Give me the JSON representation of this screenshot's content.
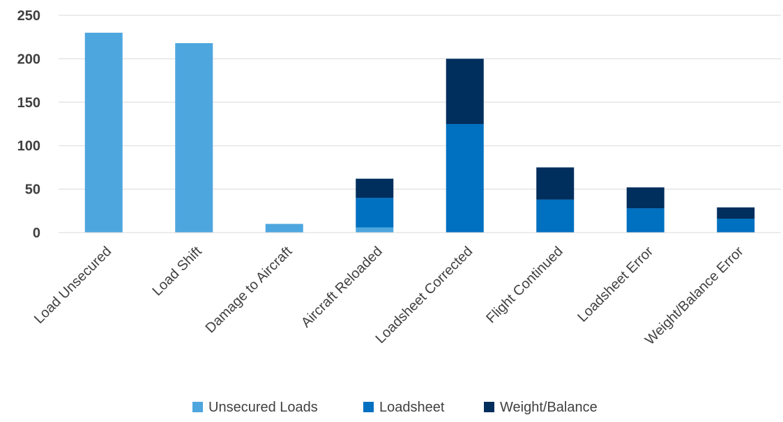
{
  "chart_data": {
    "type": "bar",
    "stacked": true,
    "categories": [
      "Load Unsecured",
      "Load Shift",
      "Damage to Aircraft",
      "Aircraft Reloaded",
      "Loadsheet Corrected",
      "Flight Continued",
      "Loadsheet Error",
      "Weight/Balance Error"
    ],
    "series": [
      {
        "name": "Unsecured Loads",
        "color": "#4EA6DF",
        "values": [
          230,
          218,
          10,
          6,
          0,
          0,
          0,
          0
        ]
      },
      {
        "name": "Loadsheet",
        "color": "#0070C0",
        "values": [
          0,
          0,
          0,
          34,
          125,
          38,
          28,
          16
        ]
      },
      {
        "name": "Weight/Balance",
        "color": "#002E5D",
        "values": [
          0,
          0,
          0,
          22,
          75,
          37,
          24,
          13
        ]
      }
    ],
    "ylim": [
      0,
      250
    ],
    "yticks": [
      0,
      50,
      100,
      150,
      200,
      250
    ],
    "grid": true,
    "legend_position": "bottom",
    "title": "",
    "xlabel": "",
    "ylabel": ""
  }
}
